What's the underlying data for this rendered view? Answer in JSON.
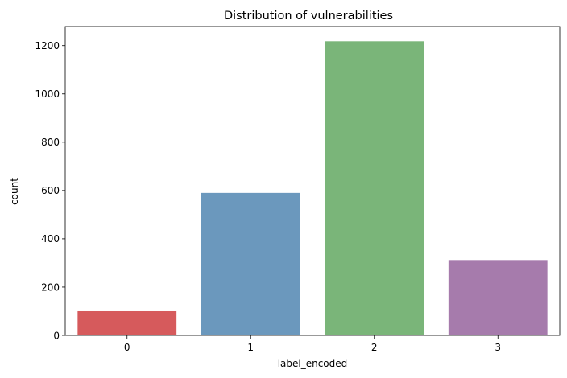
{
  "chart_data": {
    "type": "bar",
    "title": "Distribution of vulnerabilities",
    "xlabel": "label_encoded",
    "ylabel": "count",
    "categories": [
      "0",
      "1",
      "2",
      "3"
    ],
    "values": [
      100,
      590,
      1218,
      312
    ],
    "colors": [
      "#d65a5c",
      "#6b98bd",
      "#7ab579",
      "#a67bac"
    ],
    "ylim": [
      0,
      1279
    ],
    "yticks": [
      0,
      200,
      400,
      600,
      800,
      1000,
      1200
    ],
    "ytick_labels": [
      "0",
      "200",
      "400",
      "600",
      "800",
      "1000",
      "1200"
    ],
    "grid": false,
    "legend": "none"
  }
}
